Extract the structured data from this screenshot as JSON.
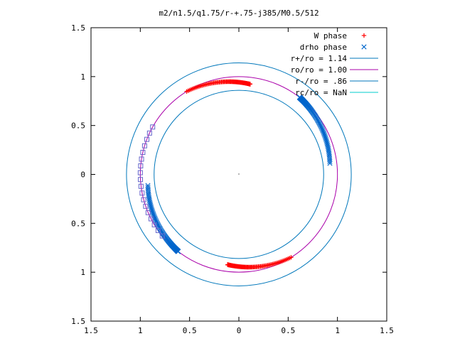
{
  "chart_data": {
    "type": "scatter",
    "title": "m2/n1.5/q1.75/r-+.75-j385/M0.5/512",
    "xlabel": "",
    "ylabel": "",
    "xlim": [
      -1.5,
      1.5
    ],
    "ylim": [
      -1.5,
      1.5
    ],
    "x_ticks": [
      {
        "value": -1.5,
        "label": "1.5"
      },
      {
        "value": -1.0,
        "label": "1"
      },
      {
        "value": -0.5,
        "label": "0.5"
      },
      {
        "value": 0,
        "label": "0"
      },
      {
        "value": 0.5,
        "label": "0.5"
      },
      {
        "value": 1.0,
        "label": "1"
      },
      {
        "value": 1.5,
        "label": "1.5"
      }
    ],
    "y_ticks": [
      {
        "value": 1.5,
        "label": "1.5"
      },
      {
        "value": 1.0,
        "label": "1"
      },
      {
        "value": 0.5,
        "label": "0.5"
      },
      {
        "value": 0,
        "label": "0"
      },
      {
        "value": -0.5,
        "label": "0.5"
      },
      {
        "value": -1.0,
        "label": "1"
      },
      {
        "value": -1.5,
        "label": "1.5"
      }
    ],
    "grid": false,
    "legend_position": "top-right",
    "series": [
      {
        "name": "W phase",
        "kind": "points",
        "marker": "plus",
        "color": "#ff0000",
        "arcs": [
          {
            "r_start": 0.93,
            "r_end": 1.0,
            "theta_start_deg": 83,
            "theta_end_deg": 122,
            "count": 90,
            "tail": "end"
          },
          {
            "r_start": 0.93,
            "r_end": 1.0,
            "theta_start_deg": 263,
            "theta_end_deg": 302,
            "count": 90,
            "tail": "end"
          }
        ]
      },
      {
        "name": "drho phase",
        "kind": "points",
        "marker": "x",
        "color": "#0066cc",
        "arcs": [
          {
            "r_start": 0.93,
            "r_end": 1.0,
            "theta_start_deg": 7,
            "theta_end_deg": 52,
            "count": 90,
            "tail": "start"
          },
          {
            "r_start": 0.93,
            "r_end": 1.0,
            "theta_start_deg": 187,
            "theta_end_deg": 232,
            "count": 90,
            "tail": "start"
          }
        ]
      },
      {
        "name": "",
        "kind": "points",
        "marker": "square",
        "color": "#6666cc",
        "arcs": [
          {
            "r_start": 1.0,
            "r_end": 1.0,
            "theta_start_deg": 151,
            "theta_end_deg": 219,
            "count": 18,
            "tail": "none"
          }
        ]
      },
      {
        "name": "r+/ro = 1.14",
        "kind": "circle",
        "radius": 1.14,
        "color": "#0077bb"
      },
      {
        "name": "ro/ro = 1.00",
        "kind": "circle",
        "radius": 1.0,
        "color": "#aa00aa"
      },
      {
        "name": "r-/ro = .86",
        "kind": "circle",
        "radius": 0.86,
        "color": "#0077bb"
      },
      {
        "name": "rc/ro = NaN",
        "kind": "circle",
        "radius": null,
        "color": "#00cccc"
      }
    ],
    "legend": [
      {
        "label": "W phase",
        "marker": "plus",
        "color": "#ff0000"
      },
      {
        "label": "drho phase",
        "marker": "x",
        "color": "#0066cc"
      },
      {
        "label": "r+/ro = 1.14",
        "marker": "line",
        "color": "#0077bb"
      },
      {
        "label": "ro/ro = 1.00",
        "marker": "line",
        "color": "#aa00aa"
      },
      {
        "label": "r-/ro = .86",
        "marker": "line",
        "color": "#0077bb"
      },
      {
        "label": "rc/ro = NaN",
        "marker": "line",
        "color": "#00cccc"
      }
    ]
  }
}
